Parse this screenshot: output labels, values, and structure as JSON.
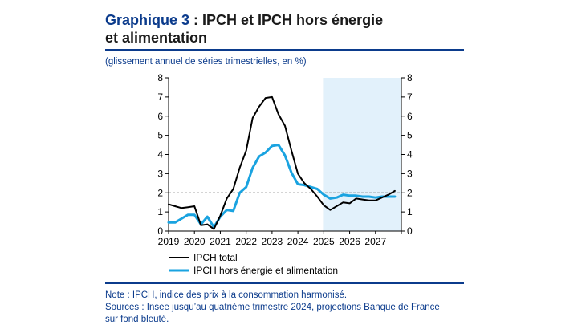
{
  "header": {
    "number": "Graphique 3",
    "separator": " : ",
    "title_line1": "IPCH et IPCH hors énergie",
    "title_line2": "et alimentation",
    "subtitle": "(glissement annuel de séries trimestrielles, en %)"
  },
  "notes": {
    "note": "Note : IPCH, indice des prix à la consommation harmonisé.",
    "sources_line1": "Sources : Insee jusqu’au quatrième trimestre 2024, projections Banque de France",
    "sources_line2": "sur fond bleuté."
  },
  "colors": {
    "accent": "#0b3b8c",
    "ipch_total": "#000000",
    "ipch_core": "#1aa3e0",
    "projection_shade": "#e2f1fb",
    "reference_line": "#555555"
  },
  "chart_data": {
    "type": "line",
    "x_ticks": [
      "2019",
      "2020",
      "2021",
      "2022",
      "2023",
      "2024",
      "2025",
      "2026",
      "2027"
    ],
    "y_ticks": [
      "0",
      "1",
      "2",
      "3",
      "4",
      "5",
      "6",
      "7",
      "8"
    ],
    "ylim": [
      0,
      8
    ],
    "xlim": [
      2019,
      2028
    ],
    "reference_line": 2,
    "projection_start": 2025,
    "legend_position": "bottom-left",
    "series": [
      {
        "name": "IPCH total",
        "color": "#000000",
        "x": [
          2019.0,
          2019.25,
          2019.5,
          2019.75,
          2020.0,
          2020.25,
          2020.5,
          2020.75,
          2021.0,
          2021.25,
          2021.5,
          2021.75,
          2022.0,
          2022.25,
          2022.5,
          2022.75,
          2023.0,
          2023.25,
          2023.5,
          2023.75,
          2024.0,
          2024.25,
          2024.5,
          2024.75,
          2025.0,
          2025.25,
          2025.5,
          2025.75,
          2026.0,
          2026.25,
          2026.5,
          2026.75,
          2027.0,
          2027.25,
          2027.5,
          2027.75
        ],
        "values": [
          1.4,
          1.3,
          1.2,
          1.25,
          1.3,
          0.3,
          0.35,
          0.1,
          0.8,
          1.7,
          2.2,
          3.3,
          4.2,
          5.9,
          6.5,
          6.95,
          7.0,
          6.1,
          5.5,
          4.2,
          3.0,
          2.5,
          2.2,
          1.8,
          1.35,
          1.1,
          1.3,
          1.5,
          1.45,
          1.7,
          1.65,
          1.6,
          1.6,
          1.75,
          1.9,
          2.1
        ]
      },
      {
        "name": "IPCH hors énergie et alimentation",
        "color": "#1aa3e0",
        "x": [
          2019.0,
          2019.25,
          2019.5,
          2019.75,
          2020.0,
          2020.25,
          2020.5,
          2020.75,
          2021.0,
          2021.25,
          2021.5,
          2021.75,
          2022.0,
          2022.25,
          2022.5,
          2022.75,
          2023.0,
          2023.25,
          2023.5,
          2023.75,
          2024.0,
          2024.25,
          2024.5,
          2024.75,
          2025.0,
          2025.25,
          2025.5,
          2025.75,
          2026.0,
          2026.25,
          2026.5,
          2026.75,
          2027.0,
          2027.25,
          2027.5,
          2027.75
        ],
        "values": [
          0.45,
          0.45,
          0.65,
          0.85,
          0.85,
          0.35,
          0.75,
          0.2,
          0.75,
          1.1,
          1.05,
          2.0,
          2.3,
          3.3,
          3.9,
          4.1,
          4.45,
          4.5,
          3.95,
          3.05,
          2.45,
          2.4,
          2.3,
          2.2,
          1.9,
          1.7,
          1.75,
          1.9,
          1.85,
          1.85,
          1.8,
          1.8,
          1.75,
          1.8,
          1.8,
          1.8
        ]
      }
    ]
  }
}
